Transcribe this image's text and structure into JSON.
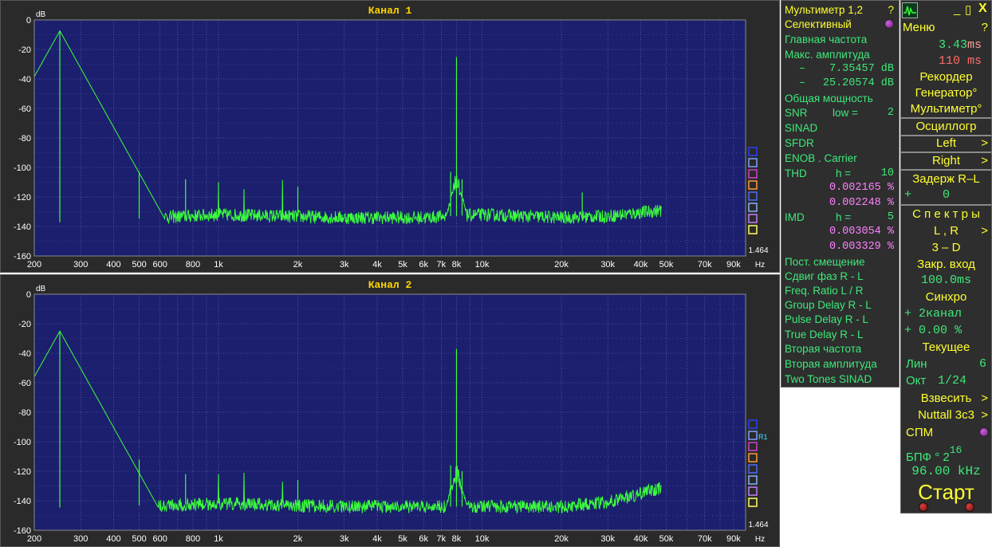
{
  "colors": {
    "plot_bg": "#1b1f6e",
    "grid": "#6f7bc0",
    "trace": "#3cff3c",
    "title": "#ffd400",
    "axis_text": "#ffffff",
    "panel_bg": "#2e2e2e",
    "menu_text": "#ffff30",
    "mm_text": "#3ee87a"
  },
  "channels": [
    {
      "title": "Канал 1",
      "unit": "dB",
      "scale_value": "1.464",
      "x_unit": "Hz",
      "marker_label": ""
    },
    {
      "title": "Канал 2",
      "unit": "dB",
      "scale_value": "1.464",
      "x_unit": "Hz",
      "marker_label": "R1"
    }
  ],
  "chart_data": [
    {
      "type": "line",
      "title": "Канал 1",
      "ylabel": "dB",
      "xlabel": "Hz",
      "xscale": "log",
      "xlim": [
        200,
        100000
      ],
      "ylim": [
        -160,
        0
      ],
      "yticks": [
        0,
        -20,
        -40,
        -60,
        -80,
        -100,
        -120,
        -140,
        -160
      ],
      "xticks": [
        200,
        300,
        400,
        500,
        600,
        800,
        1000,
        2000,
        3000,
        4000,
        5000,
        6000,
        7000,
        8000,
        10000,
        20000,
        30000,
        40000,
        50000,
        70000,
        90000
      ],
      "xtick_labels": [
        "200",
        "300",
        "400",
        "500",
        "600",
        "800",
        "1k",
        "2k",
        "3k",
        "4k",
        "5k",
        "6k",
        "7k",
        "8k",
        "10k",
        "20k",
        "30k",
        "40k",
        "50k",
        "70k",
        "90k"
      ],
      "grid": true,
      "series": [
        {
          "peaks": [
            [
              250,
              -7.4
            ],
            [
              8000,
              -25.2
            ],
            [
              500,
              -103
            ],
            [
              750,
              -108
            ],
            [
              1000,
              -110
            ],
            [
              2000,
              -113
            ],
            [
              7600,
              -103
            ],
            [
              8400,
              -108
            ],
            [
              24000,
              -117
            ]
          ],
          "noise_floor": [
            [
              200,
              -138
            ],
            [
              1000,
              -132
            ],
            [
              3000,
              -134
            ],
            [
              6000,
              -134
            ],
            [
              10000,
              -132
            ],
            [
              20000,
              -134
            ],
            [
              30000,
              -133
            ],
            [
              48000,
              -129
            ]
          ]
        }
      ]
    },
    {
      "type": "line",
      "title": "Канал 2",
      "ylabel": "dB",
      "xlabel": "Hz",
      "xscale": "log",
      "xlim": [
        200,
        100000
      ],
      "ylim": [
        -160,
        0
      ],
      "yticks": [
        0,
        -20,
        -40,
        -60,
        -80,
        -100,
        -120,
        -140,
        -160
      ],
      "xticks": [
        200,
        300,
        400,
        500,
        600,
        800,
        1000,
        2000,
        3000,
        4000,
        5000,
        6000,
        7000,
        8000,
        10000,
        20000,
        30000,
        40000,
        50000,
        70000,
        90000
      ],
      "xtick_labels": [
        "200",
        "300",
        "400",
        "500",
        "600",
        "800",
        "1k",
        "2k",
        "3k",
        "4k",
        "5k",
        "6k",
        "7k",
        "8k",
        "10k",
        "20k",
        "30k",
        "40k",
        "50k",
        "70k",
        "90k"
      ],
      "grid": true,
      "series": [
        {
          "peaks": [
            [
              250,
              -25
            ],
            [
              8000,
              -37
            ],
            [
              500,
              -112
            ],
            [
              750,
              -122
            ],
            [
              1000,
              -122
            ],
            [
              2000,
              -126
            ],
            [
              7600,
              -116
            ],
            [
              8400,
              -120
            ]
          ],
          "noise_floor": [
            [
              200,
              -145
            ],
            [
              1000,
              -142
            ],
            [
              3000,
              -144
            ],
            [
              6000,
              -144
            ],
            [
              10000,
              -144
            ],
            [
              20000,
              -144
            ],
            [
              30000,
              -141
            ],
            [
              48000,
              -131
            ]
          ]
        }
      ]
    }
  ],
  "multimeter": {
    "title": "Мультиметр 1,2",
    "q": "?",
    "mode": "Селективный",
    "main_freq": "Главная частота",
    "max_amp": "Макс. амплитуда",
    "amp1_sign": "–",
    "amp1": "7.35457",
    "amp1_unit": "dB",
    "amp2_sign": "–",
    "amp2": "25.20574",
    "amp2_unit": "dB",
    "total_power": "Общая мощность",
    "snr": "SNR",
    "snr_low": "low =",
    "snr_low_val": "2",
    "sinad": "SINAD",
    "sfdr": "SFDR",
    "enob": "ENOB . Carrier",
    "thd": "THD",
    "thd_h": "h =",
    "thd_h_val": "10",
    "thd1": "0.002165",
    "thd2": "0.002248",
    "pct": "%",
    "imd": "IMD",
    "imd_h": "h =",
    "imd_h_val": "5",
    "imd1": "0.003054",
    "imd2": "0.003329",
    "dc_offset": "Пост. смещение",
    "phase": "Сдвиг фаз R - L",
    "freq_ratio": "Freq. Ratio  L / R",
    "group_delay": "Group Delay R - L",
    "pulse_delay": "Pulse Delay R - L",
    "true_delay": "True Delay R - L",
    "second_freq": "Вторая частота",
    "second_amp": "Вторая амплитуда",
    "two_tones": "Two Tones SINAD"
  },
  "menu": {
    "win_min": "_",
    "win_max": "▯",
    "win_close": "X",
    "menu_label": "Меню",
    "menu_q": "?",
    "time1": "3.43",
    "time1_unit": "ms",
    "time2": "110",
    "time2_unit": "ms",
    "recorder": "Рекордер",
    "generator": "Генератор°",
    "multimeter": "Мультиметр°",
    "oscillograph": "Осциллогр",
    "left": "Left",
    "right": "Right",
    "delay": "Задерж  R–L",
    "delay_sign": "+",
    "delay_val": "0",
    "spectra": "С п е к т р ы",
    "lr": "L , R",
    "three_d": "3 – D",
    "closed_input": "Закр. вход",
    "closed_input_val": "100.0",
    "closed_input_unit": "ms",
    "sync": "Синхро",
    "sync_sign": "+",
    "sync_ch": "2",
    "sync_ch_label": "канал",
    "sync_pct_sign": "+",
    "sync_pct": "0.00",
    "sync_pct_unit": "%",
    "current": "Текущее",
    "lin": "Лин",
    "lin_val": "6",
    "oct": "Окт",
    "oct_val": "1/24",
    "weigh": "Взвесить",
    "window": "Nuttall 3c3",
    "spm": "СПМ",
    "fft": "БПФ ° 2",
    "fft_exp": "16",
    "sample_rate": "96.00",
    "sample_rate_unit": "kHz",
    "start": "Старт",
    "arrow": ">"
  }
}
